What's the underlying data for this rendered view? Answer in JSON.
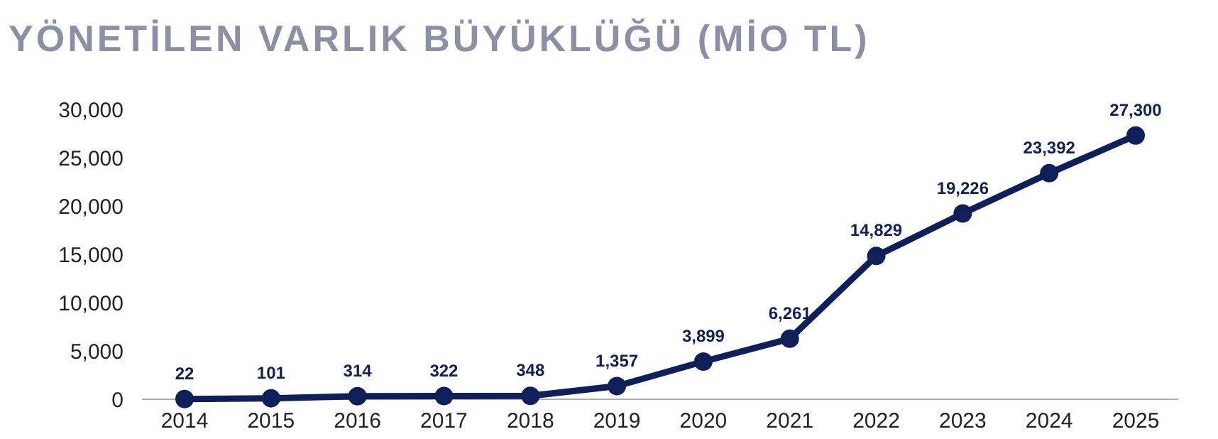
{
  "chart_data": {
    "type": "line",
    "title": "YÖNETİLEN VARLIK BÜYÜKLÜĞÜ (MİO TL)",
    "categories": [
      "2014",
      "2015",
      "2016",
      "2017",
      "2018",
      "2019",
      "2020",
      "2021",
      "2022",
      "2023",
      "2024",
      "2025"
    ],
    "series": [
      {
        "color": "#0f1f5a",
        "values": [
          22,
          101,
          314,
          322,
          348,
          1357,
          3899,
          6261,
          14829,
          19226,
          23392,
          27300
        ],
        "value_labels": [
          "22",
          "101",
          "314",
          "322",
          "348",
          "1,357",
          "3,899",
          "6,261",
          "14,829",
          "19,226",
          "23,392",
          "27,300"
        ]
      }
    ],
    "ylim": [
      0,
      30000
    ],
    "yticks": [
      {
        "value": 0,
        "label": "0"
      },
      {
        "value": 5000,
        "label": "5,000"
      },
      {
        "value": 10000,
        "label": "10,000"
      },
      {
        "value": 15000,
        "label": "15,000"
      },
      {
        "value": 20000,
        "label": "20,000"
      },
      {
        "value": 25000,
        "label": "25,000"
      },
      {
        "value": 30000,
        "label": "30,000"
      }
    ],
    "marker": "circle",
    "line_style": "solid"
  }
}
